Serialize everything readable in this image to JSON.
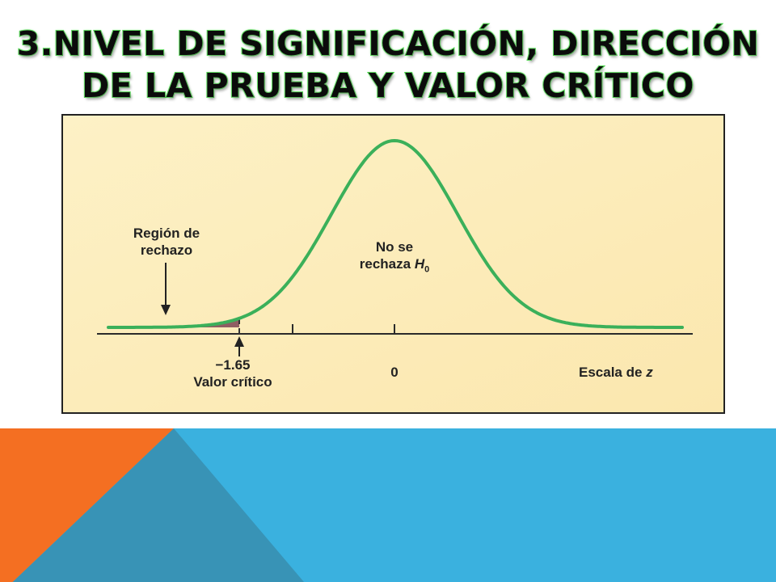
{
  "title": {
    "line1": "3.NIVEL DE SIGNIFICACIÓN, DIRECCIÓN",
    "line2": "DE LA PRUEBA Y VALOR CRÍTICO"
  },
  "diagram": {
    "rejection_region_label": [
      "Región de",
      "rechazo"
    ],
    "accept_label_text": "No se",
    "accept_label_line2_prefix": "rechaza",
    "accept_label_symbol": "H",
    "accept_label_subscript": "0",
    "critical_value": "−1.65",
    "critical_value_label": "Valor crítico",
    "center_tick_label": "0",
    "scale_label_prefix": "Escala de",
    "scale_label_var": "z"
  },
  "colors": {
    "curve": "#3bb05a",
    "rejection_fill": "#8f5e63",
    "panel_bg": "#fdeebb",
    "footer_blue": "#3ab1df",
    "footer_orange": "#f46f22",
    "footer_teal": "#3893b6"
  }
}
